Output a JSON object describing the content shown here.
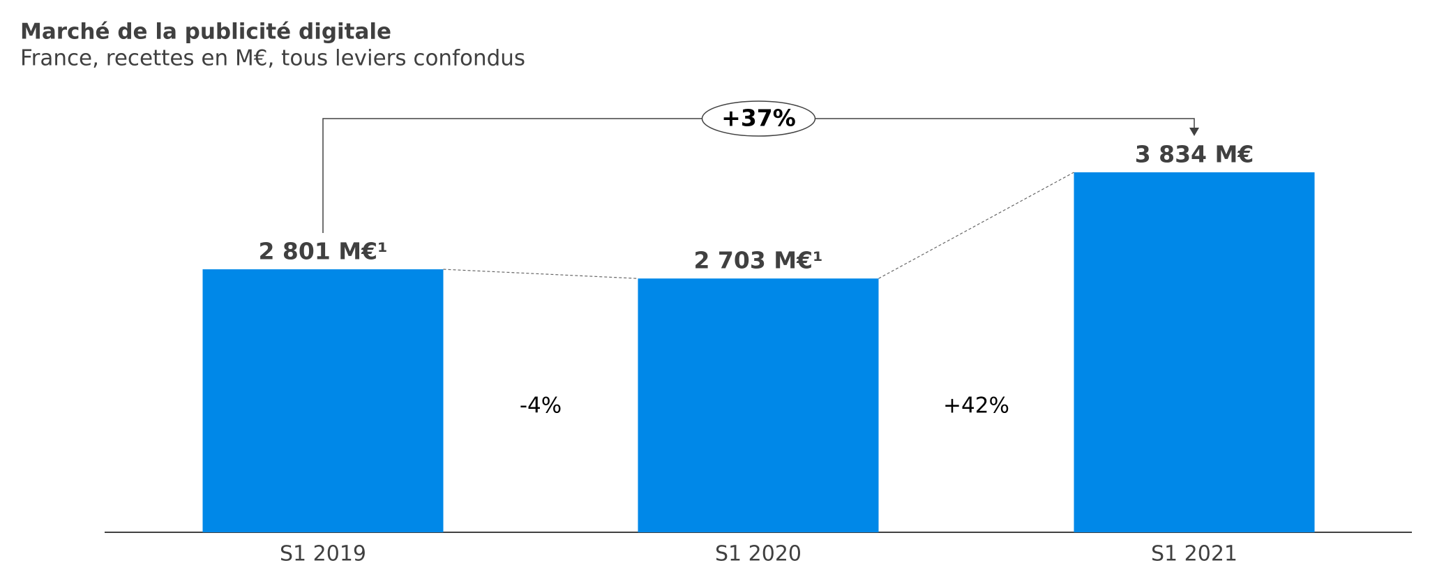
{
  "chart_data": {
    "type": "bar",
    "title": "Marché de la publicité digitale",
    "subtitle": "France, recettes en M€, tous leviers confondus",
    "categories": [
      "S1 2019",
      "S1 2020",
      "S1 2021"
    ],
    "values": [
      2801,
      2703,
      3834
    ],
    "value_labels": [
      "2 801 M€¹",
      "2 703 M€¹",
      "3 834 M€"
    ],
    "color": "#0088e8",
    "annotations": [
      "-4%",
      "+42%",
      "+37%"
    ]
  }
}
